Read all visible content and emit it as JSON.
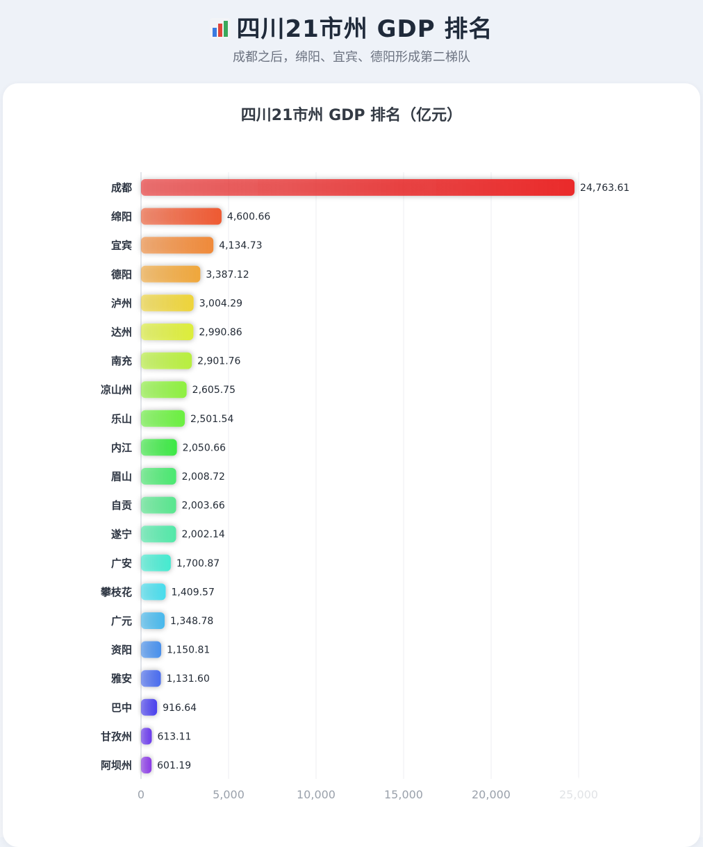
{
  "page": {
    "title": "四川21市州 GDP 排名",
    "title_icon": "bar-chart-icon",
    "subtitle": "成都之后，绵阳、宜宾、德阳形成第二梯队"
  },
  "chart_data": {
    "type": "bar",
    "orientation": "horizontal",
    "title": "四川21市州 GDP 排名（亿元）",
    "xlim": [
      0,
      25000
    ],
    "x_ticks": [
      "0",
      "5,000",
      "10,000",
      "15,000",
      "20,000",
      "25,000"
    ],
    "x_tick_values": [
      0,
      5000,
      10000,
      15000,
      20000,
      25000
    ],
    "grid": true,
    "categories": [
      "成都",
      "绵阳",
      "宜宾",
      "德阳",
      "泸州",
      "达州",
      "南充",
      "凉山州",
      "乐山",
      "内江",
      "眉山",
      "自贡",
      "遂宁",
      "广安",
      "攀枝花",
      "广元",
      "资阳",
      "雅安",
      "巴中",
      "甘孜州",
      "阿坝州"
    ],
    "values": [
      24763.61,
      4600.66,
      4134.73,
      3387.12,
      3004.29,
      2990.86,
      2901.76,
      2605.75,
      2501.54,
      2050.66,
      2008.72,
      2003.66,
      2002.14,
      1700.87,
      1409.57,
      1348.78,
      1150.81,
      1131.6,
      916.64,
      613.11,
      601.19
    ],
    "value_labels": [
      "24,763.61",
      "4,600.66",
      "4,134.73",
      "3,387.12",
      "3,004.29",
      "2,990.86",
      "2,901.76",
      "2,605.75",
      "2,501.54",
      "2,050.66",
      "2,008.72",
      "2,003.66",
      "2,002.14",
      "1,700.87",
      "1,409.57",
      "1,348.78",
      "1,150.81",
      "1,131.60",
      "916.64",
      "613.11",
      "601.19"
    ],
    "colors": [
      "#ea2c2c",
      "#ef5a33",
      "#f08a3a",
      "#f0a73c",
      "#eed43a",
      "#dced3a",
      "#b8ef3e",
      "#8ef040",
      "#6bf040",
      "#3ce844",
      "#4ae870",
      "#58e68e",
      "#52e8a8",
      "#45ead0",
      "#48dcec",
      "#48b8ec",
      "#4890ec",
      "#4a6cee",
      "#4a40ee",
      "#6a3aec",
      "#8a3ae6"
    ]
  }
}
